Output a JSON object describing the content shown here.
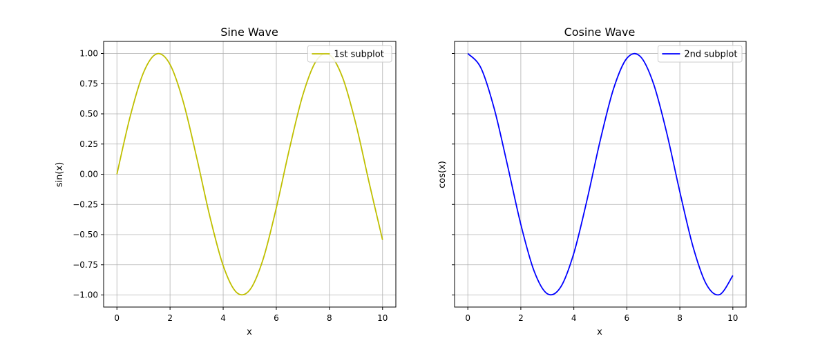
{
  "figure": {
    "background": "#ffffff",
    "grid_color": "#b0b0b0"
  },
  "chart_data": [
    {
      "type": "line",
      "title": "Sine Wave",
      "xlabel": "x",
      "ylabel": "sin(x)",
      "xlim": [
        -0.5,
        10.5
      ],
      "ylim": [
        -1.1,
        1.1
      ],
      "xticks": [
        0,
        2,
        4,
        6,
        8,
        10
      ],
      "xtick_labels": [
        "0",
        "2",
        "4",
        "6",
        "8",
        "10"
      ],
      "yticks": [
        1.0,
        0.75,
        0.5,
        0.25,
        0.0,
        -0.25,
        -0.5,
        -0.75,
        -1.0
      ],
      "ytick_labels": [
        "1.00",
        "0.75",
        "0.50",
        "0.25",
        "0.00",
        "−0.25",
        "−0.50",
        "−0.75",
        "−1.00"
      ],
      "grid": true,
      "legend_position": "top-right",
      "series": [
        {
          "name": "1st subplot",
          "color": "#bfbf00",
          "x": [
            0,
            0.5,
            1,
            1.5,
            2,
            2.5,
            3,
            3.5,
            4,
            4.5,
            5,
            5.5,
            6,
            6.5,
            7,
            7.5,
            8,
            8.5,
            9,
            9.5,
            10
          ],
          "y": [
            0.0,
            0.479,
            0.841,
            0.997,
            0.909,
            0.598,
            0.141,
            -0.351,
            -0.757,
            -0.978,
            -0.959,
            -0.706,
            -0.279,
            0.215,
            0.657,
            0.938,
            0.989,
            0.798,
            0.412,
            -0.075,
            -0.544
          ]
        }
      ]
    },
    {
      "type": "line",
      "title": "Cosine Wave",
      "xlabel": "x",
      "ylabel": "cos(x)",
      "xlim": [
        -0.5,
        10.5
      ],
      "ylim": [
        -1.1,
        1.1
      ],
      "xticks": [
        0,
        2,
        4,
        6,
        8,
        10
      ],
      "xtick_labels": [
        "0",
        "2",
        "4",
        "6",
        "8",
        "10"
      ],
      "yticks": [
        1.0,
        0.75,
        0.5,
        0.25,
        0.0,
        -0.25,
        -0.5,
        -0.75,
        -1.0
      ],
      "ytick_labels": [],
      "grid": true,
      "legend_position": "top-right",
      "series": [
        {
          "name": "2nd subplot",
          "color": "#0000ff",
          "x": [
            0,
            0.5,
            1,
            1.5,
            2,
            2.5,
            3,
            3.5,
            4,
            4.5,
            5,
            5.5,
            6,
            6.5,
            7,
            7.5,
            8,
            8.5,
            9,
            9.5,
            10
          ],
          "y": [
            1.0,
            0.878,
            0.54,
            0.071,
            -0.416,
            -0.801,
            -0.99,
            -0.936,
            -0.654,
            -0.211,
            0.284,
            0.709,
            0.96,
            0.977,
            0.754,
            0.347,
            -0.146,
            -0.602,
            -0.911,
            -0.997,
            -0.839
          ]
        }
      ]
    }
  ]
}
